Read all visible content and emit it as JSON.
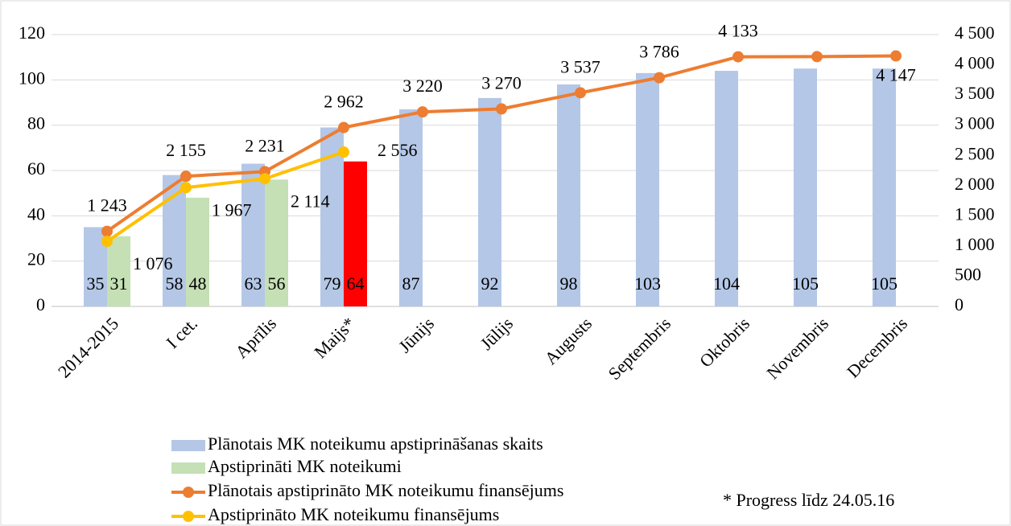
{
  "chart_data": {
    "type": "bar-line",
    "categories": [
      "2014-2015",
      "I cet.",
      "Aprīlis",
      "Maijs*",
      "Jūnijs",
      "Jūlijs",
      "Augusts",
      "Septembris",
      "Oktobris",
      "Novembris",
      "Decembris"
    ],
    "series": [
      {
        "name": "Plānotais MK noteikumu apstiprināšanas skaits",
        "type": "bar",
        "color": "#b4c7e7",
        "values": [
          35,
          58,
          63,
          79,
          87,
          92,
          98,
          103,
          104,
          105,
          105
        ]
      },
      {
        "name": "Apstiprināti MK noteikumi",
        "type": "bar",
        "color": "#c5e0b4",
        "colors": [
          "#c5e0b4",
          "#c5e0b4",
          "#c5e0b4",
          "#ff0000",
          null,
          null,
          null,
          null,
          null,
          null,
          null
        ],
        "values": [
          31,
          48,
          56,
          64,
          null,
          null,
          null,
          null,
          null,
          null,
          null
        ]
      },
      {
        "name": "Plānotais apstiprināto MK noteikumu finansējums",
        "type": "line",
        "axis": "y2",
        "color": "#ed7d31",
        "values": [
          1243,
          2155,
          2231,
          2962,
          3220,
          3270,
          3537,
          3786,
          4133,
          4135,
          4147
        ],
        "value_labels": [
          "1 243",
          "2 155",
          "2 231",
          "2 962",
          "3 220",
          "3 270",
          "3 537",
          "3 786",
          "4 133",
          null,
          "4 147"
        ]
      },
      {
        "name": "Apstiprināto MK noteikumu finansējums",
        "type": "line",
        "axis": "y2",
        "color": "#ffc000",
        "values": [
          1076,
          1967,
          2114,
          2556,
          null,
          null,
          null,
          null,
          null,
          null,
          null
        ],
        "value_labels": [
          "1 076",
          "1 967",
          "2 114",
          "2 556",
          null,
          null,
          null,
          null,
          null,
          null,
          null
        ]
      }
    ],
    "ylim": [
      0,
      120
    ],
    "yticks": [
      0,
      20,
      40,
      60,
      80,
      100,
      120
    ],
    "y2lim": [
      0,
      4500
    ],
    "y2ticks": [
      0,
      500,
      {
        "value": 1000,
        "label": "1 000"
      },
      {
        "value": 1500,
        "label": "1 500"
      },
      {
        "value": 2000,
        "label": "2 000"
      },
      {
        "value": 2500,
        "label": "2 500"
      },
      {
        "value": 3000,
        "label": "3 000"
      },
      {
        "value": 3500,
        "label": "3 500"
      },
      {
        "value": 4000,
        "label": "4 000"
      },
      {
        "value": 4500,
        "label": "4 500"
      }
    ],
    "grid": true,
    "annotation": "* Progress līdz 24.05.16"
  }
}
